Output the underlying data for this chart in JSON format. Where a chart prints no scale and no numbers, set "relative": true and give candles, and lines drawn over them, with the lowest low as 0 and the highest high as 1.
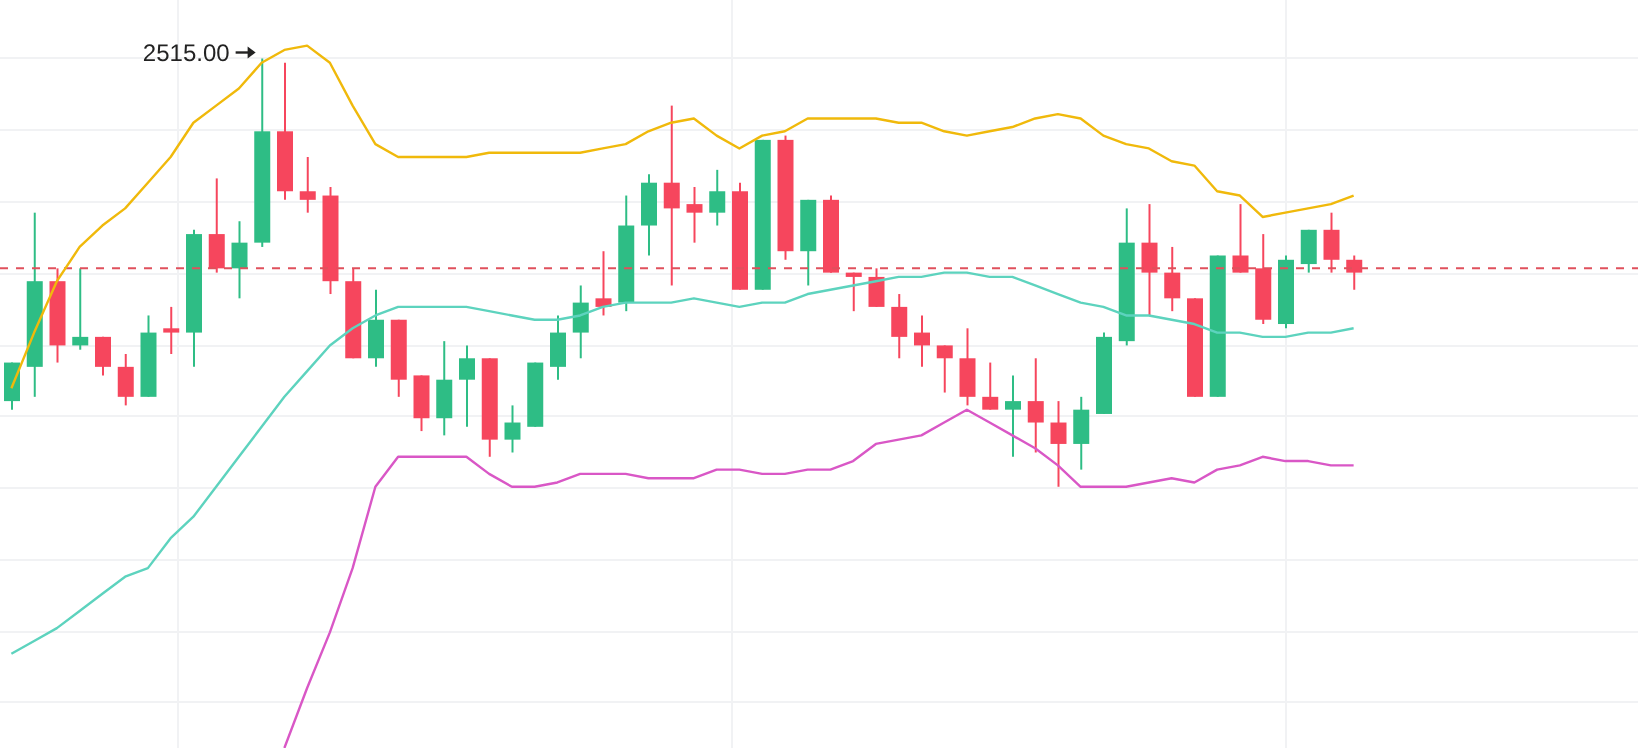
{
  "chart_data": {
    "type": "candlestick",
    "relative": true,
    "grid": true,
    "categories": [
      null,
      null,
      null,
      null,
      null,
      null,
      null,
      null,
      null,
      null,
      null,
      null,
      null,
      null,
      null,
      null,
      null,
      null,
      null,
      null,
      null,
      null,
      null,
      null,
      null,
      null,
      null,
      null,
      null,
      null,
      null,
      null,
      null,
      null,
      null,
      null,
      null,
      null,
      null,
      null,
      null,
      null,
      null,
      null,
      null,
      null,
      null,
      null,
      null,
      null,
      null,
      null,
      null,
      null,
      null,
      null,
      null,
      null,
      null,
      null,
      null,
      null,
      null,
      null,
      null,
      null,
      null,
      null,
      null,
      null,
      null,
      null
    ],
    "ohlc": [
      [
        0.2,
        0.29,
        0.18,
        0.29
      ],
      [
        0.28,
        0.64,
        0.21,
        0.48
      ],
      [
        0.48,
        0.51,
        0.29,
        0.33
      ],
      [
        0.33,
        0.51,
        0.32,
        0.35
      ],
      [
        0.35,
        0.35,
        0.26,
        0.28
      ],
      [
        0.28,
        0.31,
        0.19,
        0.21
      ],
      [
        0.21,
        0.4,
        0.21,
        0.36
      ],
      [
        0.37,
        0.42,
        0.31,
        0.36
      ],
      [
        0.36,
        0.6,
        0.28,
        0.59
      ],
      [
        0.59,
        0.72,
        0.5,
        0.51
      ],
      [
        0.51,
        0.62,
        0.44,
        0.57
      ],
      [
        0.57,
        1.0,
        0.56,
        0.83
      ],
      [
        0.83,
        0.99,
        0.67,
        0.69
      ],
      [
        0.69,
        0.77,
        0.64,
        0.67
      ],
      [
        0.68,
        0.7,
        0.45,
        0.48
      ],
      [
        0.48,
        0.51,
        0.3,
        0.3
      ],
      [
        0.3,
        0.46,
        0.28,
        0.39
      ],
      [
        0.39,
        0.39,
        0.21,
        0.25
      ],
      [
        0.26,
        0.26,
        0.13,
        0.16
      ],
      [
        0.16,
        0.34,
        0.12,
        0.25
      ],
      [
        0.25,
        0.33,
        0.14,
        0.3
      ],
      [
        0.3,
        0.3,
        0.07,
        0.11
      ],
      [
        0.11,
        0.19,
        0.08,
        0.15
      ],
      [
        0.14,
        0.29,
        0.14,
        0.29
      ],
      [
        0.28,
        0.4,
        0.25,
        0.36
      ],
      [
        0.36,
        0.47,
        0.3,
        0.43
      ],
      [
        0.44,
        0.55,
        0.4,
        0.42
      ],
      [
        0.43,
        0.68,
        0.41,
        0.61
      ],
      [
        0.61,
        0.73,
        0.54,
        0.71
      ],
      [
        0.71,
        0.89,
        0.47,
        0.65
      ],
      [
        0.66,
        0.7,
        0.57,
        0.64
      ],
      [
        0.64,
        0.74,
        0.61,
        0.69
      ],
      [
        0.69,
        0.71,
        0.46,
        0.46
      ],
      [
        0.46,
        0.81,
        0.46,
        0.81
      ],
      [
        0.81,
        0.82,
        0.53,
        0.55
      ],
      [
        0.55,
        0.67,
        0.47,
        0.67
      ],
      [
        0.67,
        0.68,
        0.5,
        0.5
      ],
      [
        0.5,
        0.5,
        0.41,
        0.49
      ],
      [
        0.49,
        0.51,
        0.42,
        0.42
      ],
      [
        0.42,
        0.45,
        0.3,
        0.35
      ],
      [
        0.36,
        0.4,
        0.28,
        0.33
      ],
      [
        0.33,
        0.33,
        0.22,
        0.3
      ],
      [
        0.3,
        0.37,
        0.19,
        0.21
      ],
      [
        0.21,
        0.29,
        0.18,
        0.18
      ],
      [
        0.18,
        0.26,
        0.07,
        0.2
      ],
      [
        0.2,
        0.3,
        0.08,
        0.15
      ],
      [
        0.15,
        0.2,
        0,
        0.1
      ],
      [
        0.1,
        0.21,
        0.04,
        0.18
      ],
      [
        0.17,
        0.36,
        0.17,
        0.35
      ],
      [
        0.34,
        0.65,
        0.33,
        0.57
      ],
      [
        0.57,
        0.66,
        0.4,
        0.5
      ],
      [
        0.5,
        0.56,
        0.41,
        0.44
      ],
      [
        0.44,
        0.44,
        0.21,
        0.21
      ],
      [
        0.21,
        0.54,
        0.21,
        0.54
      ],
      [
        0.54,
        0.66,
        0.5,
        0.5
      ],
      [
        0.51,
        0.59,
        0.38,
        0.39
      ],
      [
        0.38,
        0.54,
        0.37,
        0.53
      ],
      [
        0.52,
        0.6,
        0.5,
        0.6
      ],
      [
        0.6,
        0.64,
        0.5,
        0.53
      ],
      [
        0.53,
        0.54,
        0.46,
        0.5
      ],
      null,
      null,
      null,
      null,
      null,
      null,
      null,
      null,
      null,
      null,
      null,
      null
    ],
    "colors": [
      "#2ebd85",
      "#2ebd85",
      "#f6465d",
      "#2ebd85",
      "#f6465d",
      "#f6465d",
      "#2ebd85",
      "#f6465d",
      "#2ebd85",
      "#f6465d",
      "#2ebd85",
      "#2ebd85",
      "#f6465d",
      "#f6465d",
      "#f6465d",
      "#f6465d",
      "#2ebd85",
      "#f6465d",
      "#f6465d",
      "#2ebd85",
      "#2ebd85",
      "#f6465d",
      "#2ebd85",
      "#2ebd85",
      "#2ebd85",
      "#2ebd85",
      "#f6465d",
      "#2ebd85",
      "#2ebd85",
      "#f6465d",
      "#f6465d",
      "#2ebd85",
      "#f6465d",
      "#2ebd85",
      "#f6465d",
      "#2ebd85",
      "#f6465d",
      "#f6465d",
      "#f6465d",
      "#f6465d",
      "#f6465d",
      "#f6465d",
      "#f6465d",
      "#f6465d",
      "#2ebd85",
      "#f6465d",
      "#f6465d",
      "#2ebd85",
      "#2ebd85",
      "#2ebd85",
      "#f6465d",
      "#f6465d",
      "#f6465d",
      "#2ebd85",
      "#f6465d",
      "#f6465d",
      "#2ebd85",
      "#2ebd85",
      "#f6465d",
      "#f6465d",
      null,
      null,
      null,
      null,
      null,
      null,
      null,
      null,
      null,
      null,
      null,
      null
    ],
    "series": [
      {
        "type": "line",
        "color": "#f0b90b",
        "values": [
          0.23,
          0.36,
          0.48,
          0.56,
          0.61,
          0.65,
          0.71,
          0.77,
          0.85,
          0.89,
          0.93,
          0.99,
          1.02,
          1.03,
          0.99,
          0.89,
          0.8,
          0.77,
          0.77,
          0.77,
          0.77,
          0.78,
          0.78,
          0.78,
          0.78,
          0.78,
          0.79,
          0.8,
          0.83,
          0.85,
          0.86,
          0.82,
          0.79,
          0.82,
          0.83,
          0.86,
          0.86,
          0.86,
          0.86,
          0.85,
          0.85,
          0.83,
          0.82,
          0.83,
          0.84,
          0.86,
          0.87,
          0.86,
          0.82,
          0.8,
          0.79,
          0.76,
          0.75,
          0.69,
          0.68,
          0.63,
          0.64,
          0.65,
          0.66,
          0.68,
          null,
          null,
          null,
          null,
          null,
          null,
          null,
          null,
          null,
          null,
          null,
          null
        ]
      },
      {
        "type": "line",
        "color": "#5dd3be",
        "values": [
          -0.39,
          -0.36,
          -0.33,
          -0.29,
          -0.25,
          -0.21,
          -0.19,
          -0.12,
          -0.07,
          0,
          0.07,
          0.14,
          0.21,
          0.27,
          0.33,
          0.37,
          0.4,
          0.42,
          0.42,
          0.42,
          0.42,
          0.41,
          0.4,
          0.39,
          0.39,
          0.4,
          0.42,
          0.43,
          0.43,
          0.43,
          0.44,
          0.43,
          0.42,
          0.43,
          0.43,
          0.45,
          0.46,
          0.47,
          0.48,
          0.49,
          0.49,
          0.5,
          0.5,
          0.49,
          0.49,
          0.47,
          0.45,
          0.43,
          0.42,
          0.4,
          0.4,
          0.39,
          0.38,
          0.36,
          0.36,
          0.35,
          0.35,
          0.36,
          0.36,
          0.37,
          null,
          null,
          null,
          null,
          null,
          null,
          null,
          null,
          null,
          null,
          null,
          null
        ]
      },
      {
        "type": "line",
        "color": "#d957c6",
        "values": [
          null,
          null,
          null,
          null,
          null,
          null,
          null,
          null,
          null,
          null,
          null,
          null,
          -0.61,
          -0.47,
          -0.34,
          -0.19,
          0,
          0.07,
          0.07,
          0.07,
          0.07,
          0.03,
          0,
          0,
          0.01,
          0.03,
          0.03,
          0.03,
          0.02,
          0.02,
          0.02,
          0.04,
          0.04,
          0.03,
          0.03,
          0.04,
          0.04,
          0.06,
          0.1,
          0.11,
          0.12,
          0.15,
          0.18,
          0.15,
          0.12,
          0.09,
          0.05,
          0,
          0,
          0,
          0.01,
          0.02,
          0.01,
          0.04,
          0.05,
          0.07,
          0.06,
          0.06,
          0.05,
          0.05,
          null,
          null,
          null,
          null,
          null,
          null,
          null,
          null,
          null,
          null,
          null,
          null
        ]
      }
    ],
    "ref_lines": [
      {
        "axis": "y",
        "value": 0.51,
        "color": "#e0505c",
        "line_style": "dashed"
      }
    ],
    "annotations": [
      "2515.00"
    ]
  }
}
